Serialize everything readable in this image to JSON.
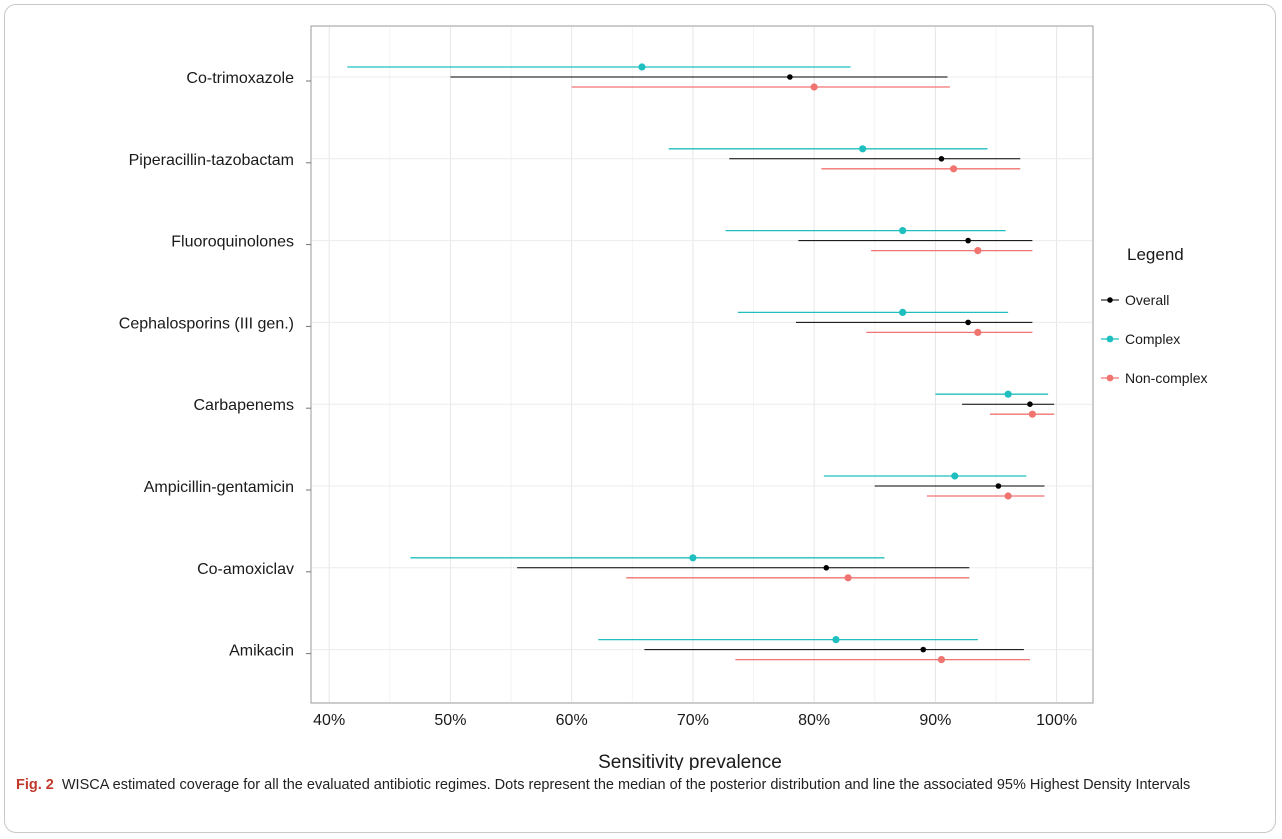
{
  "chart_data": {
    "type": "scatter",
    "xlabel": "Sensitivity prevalence",
    "xlim": [
      0.385,
      1.03
    ],
    "xticks": [
      0.4,
      0.5,
      0.6,
      0.7,
      0.8,
      0.9,
      1.0
    ],
    "xtick_labels": [
      "40%",
      "50%",
      "60%",
      "70%",
      "80%",
      "90%",
      "100%"
    ],
    "categories": [
      "Co-trimoxazole",
      "Piperacillin-tazobactam",
      "Fluoroquinolones",
      "Cephalosporins (III gen.)",
      "Carbapenems",
      "Ampicillin-gentamicin",
      "Co-amoxiclav",
      "Amikacin"
    ],
    "series": [
      {
        "name": "Overall",
        "color": "#000000",
        "median": [
          0.78,
          0.905,
          0.927,
          0.927,
          0.978,
          0.952,
          0.81,
          0.89
        ],
        "low": [
          0.5,
          0.73,
          0.787,
          0.785,
          0.922,
          0.85,
          0.555,
          0.66
        ],
        "high": [
          0.91,
          0.97,
          0.98,
          0.98,
          0.998,
          0.99,
          0.928,
          0.973
        ]
      },
      {
        "name": "Complex",
        "color": "#1fbfbf",
        "median": [
          0.658,
          0.84,
          0.873,
          0.873,
          0.96,
          0.916,
          0.7,
          0.818
        ],
        "low": [
          0.415,
          0.68,
          0.727,
          0.737,
          0.9,
          0.808,
          0.467,
          0.622
        ],
        "high": [
          0.83,
          0.943,
          0.958,
          0.96,
          0.993,
          0.975,
          0.858,
          0.935
        ]
      },
      {
        "name": "Non-complex",
        "color": "#f07470",
        "median": [
          0.8,
          0.915,
          0.935,
          0.935,
          0.98,
          0.96,
          0.828,
          0.905
        ],
        "low": [
          0.6,
          0.806,
          0.847,
          0.843,
          0.945,
          0.893,
          0.645,
          0.735
        ],
        "high": [
          0.912,
          0.97,
          0.98,
          0.98,
          0.998,
          0.99,
          0.928,
          0.978
        ]
      }
    ],
    "legend": {
      "title": "Legend",
      "position": "right"
    },
    "grid": true
  },
  "caption": {
    "figure_label": "Fig. 2",
    "text": "WISCA estimated coverage for all the evaluated antibiotic regimes. Dots represent the median of the posterior distribution and line the associated 95% Highest Density Intervals"
  }
}
